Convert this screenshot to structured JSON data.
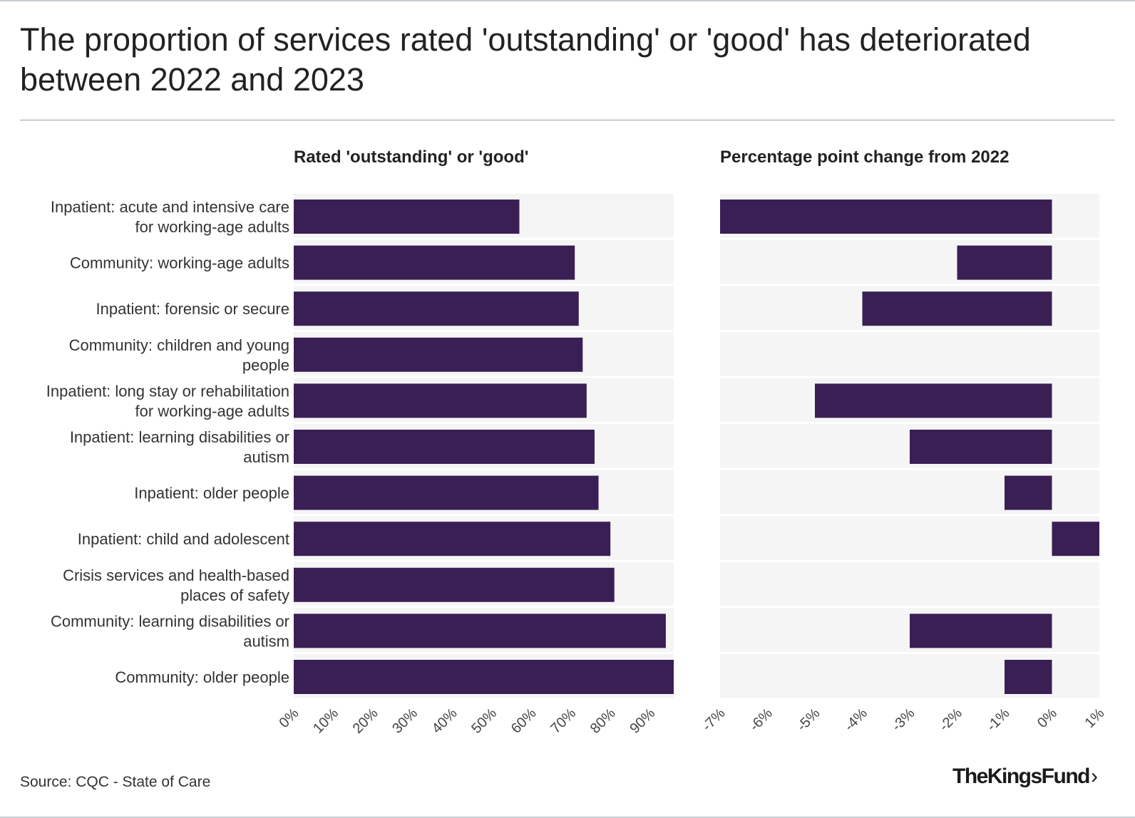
{
  "title": "The proportion of services rated 'outstanding' or 'good' has deteriorated between 2022 and 2023",
  "source": "Source: CQC - State of Care",
  "logo": {
    "text": "TheKingsFund",
    "chevron": "›"
  },
  "colors": {
    "bar": "#3a1f55",
    "band": "#f5f5f5",
    "text": "#222222"
  },
  "chart_data": [
    {
      "type": "bar",
      "orientation": "horizontal",
      "title": "Rated 'outstanding' or 'good'",
      "categories": [
        [
          "Inpatient: acute and intensive care",
          "for working-age adults"
        ],
        [
          "Community: working-age adults"
        ],
        [
          "Inpatient: forensic or secure"
        ],
        [
          "Community: children and young",
          "people"
        ],
        [
          "Inpatient: long stay or rehabilitation",
          "for working-age adults"
        ],
        [
          "Inpatient: learning disabilities or",
          "autism"
        ],
        [
          "Inpatient: older people"
        ],
        [
          "Inpatient: child and adolescent"
        ],
        [
          "Crisis services and health-based",
          "places of safety"
        ],
        [
          "Community: learning disabilities or",
          "autism"
        ],
        [
          "Community: older people"
        ]
      ],
      "values": [
        57,
        71,
        72,
        73,
        74,
        76,
        77,
        80,
        81,
        94,
        96
      ],
      "xlim": [
        0,
        96
      ],
      "ticks": [
        0,
        10,
        20,
        30,
        40,
        50,
        60,
        70,
        80,
        90
      ],
      "tick_labels": [
        "0%",
        "10%",
        "20%",
        "30%",
        "40%",
        "50%",
        "60%",
        "70%",
        "80%",
        "90%"
      ]
    },
    {
      "type": "bar",
      "orientation": "horizontal",
      "title": "Percentage point change from 2022",
      "values": [
        -7,
        -2,
        -4,
        0,
        -5,
        -3,
        -1,
        1,
        0,
        -3,
        -1
      ],
      "xlim": [
        -7,
        1
      ],
      "ticks": [
        -7,
        -6,
        -5,
        -4,
        -3,
        -2,
        -1,
        0,
        1
      ],
      "tick_labels": [
        "-7%",
        "-6%",
        "-5%",
        "-4%",
        "-3%",
        "-2%",
        "-1%",
        "0%",
        "1%"
      ]
    }
  ]
}
